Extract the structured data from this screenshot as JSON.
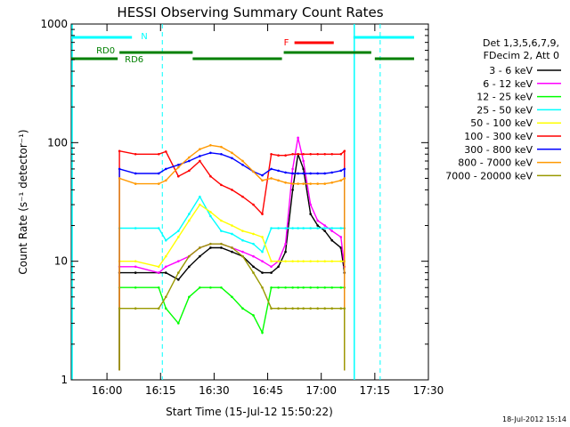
{
  "chart_data": {
    "type": "line",
    "title": "HESSI Observing Summary Count Rates",
    "xlabel": "Start Time (15-Jul-12 15:50:22)",
    "ylabel": "Count Rate (s⁻¹ detector⁻¹)",
    "yscale": "log",
    "x_unit": "minutes after 15:50:22",
    "xlim": [
      0,
      100
    ],
    "ylim": [
      1,
      1000
    ],
    "x_ticks": [
      {
        "label": "16:00",
        "x": 10
      },
      {
        "label": "16:15",
        "x": 25
      },
      {
        "label": "16:30",
        "x": 40
      },
      {
        "label": "16:45",
        "x": 55
      },
      {
        "label": "17:00",
        "x": 70
      },
      {
        "label": "17:15",
        "x": 85
      },
      {
        "label": "17:30",
        "x": 100
      }
    ],
    "y_ticks": [
      {
        "label": "1",
        "y": 1
      },
      {
        "label": "10",
        "y": 10
      },
      {
        "label": "100",
        "y": 100
      },
      {
        "label": "1000",
        "y": 1000
      }
    ],
    "legend_title": [
      "Det 1,3,5,6,7,9,",
      "FDecim 2, Att 0"
    ],
    "legend_position": "right",
    "series": [
      {
        "name": "3 - 6 keV",
        "color": "#000000",
        "x": [
          13.5,
          18,
          24.5,
          26.5,
          30,
          33,
          36,
          39,
          42,
          45,
          48,
          51,
          53.5,
          56,
          58,
          60,
          62,
          63.5,
          65,
          67,
          69,
          71,
          73,
          75.5,
          76.5
        ],
        "y": [
          8,
          8,
          8,
          8,
          7,
          9,
          11,
          13,
          13,
          12,
          11,
          9,
          8,
          8,
          9,
          12,
          40,
          80,
          60,
          25,
          20,
          18,
          15,
          13,
          8
        ]
      },
      {
        "name": "6 - 12 keV",
        "color": "#ff00ff",
        "x": [
          13.5,
          18,
          24.5,
          26.5,
          30,
          33,
          36,
          39,
          42,
          45,
          48,
          51,
          53.5,
          56,
          58,
          60,
          62,
          63.5,
          65,
          67,
          69,
          71,
          73,
          75.5,
          76.5
        ],
        "y": [
          9,
          9,
          8,
          9,
          10,
          11,
          13,
          14,
          14,
          13,
          12,
          11,
          10,
          9,
          10,
          14,
          60,
          110,
          70,
          30,
          22,
          20,
          18,
          16,
          9
        ]
      },
      {
        "name": "12 - 25 keV",
        "color": "#00ff00",
        "x": [
          13.5,
          18,
          24.5,
          26.5,
          30,
          33,
          36,
          39,
          42,
          45,
          48,
          51,
          53.5,
          56,
          58,
          60,
          62,
          63.5,
          65,
          67,
          69,
          71,
          73,
          75.5,
          76.5
        ],
        "y": [
          6,
          6,
          6,
          4,
          3,
          5,
          6,
          6,
          6,
          5,
          4,
          3.5,
          2.5,
          6,
          6,
          6,
          6,
          6,
          6,
          6,
          6,
          6,
          6,
          6,
          6
        ]
      },
      {
        "name": "25 - 50 keV",
        "color": "#00ffff",
        "x": [
          13.5,
          18,
          24.5,
          26.5,
          30,
          33,
          36,
          39,
          42,
          45,
          48,
          51,
          53.5,
          56,
          58,
          60,
          62,
          63.5,
          65,
          67,
          69,
          71,
          73,
          75.5,
          76.5
        ],
        "y": [
          19,
          19,
          19,
          15,
          18,
          25,
          35,
          24,
          18,
          17,
          15,
          14,
          12,
          19,
          19,
          19,
          19,
          19,
          19,
          19,
          19,
          19,
          19,
          19,
          19
        ]
      },
      {
        "name": "50 - 100 keV",
        "color": "#ffff00",
        "x": [
          13.5,
          18,
          24.5,
          26.5,
          30,
          33,
          36,
          39,
          42,
          45,
          48,
          51,
          53.5,
          56,
          58,
          60,
          62,
          63.5,
          65,
          67,
          69,
          71,
          73,
          75.5,
          76.5
        ],
        "y": [
          10,
          10,
          9,
          11,
          16,
          22,
          30,
          26,
          22,
          20,
          18,
          17,
          16,
          10,
          10,
          10,
          10,
          10,
          10,
          10,
          10,
          10,
          10,
          10,
          10
        ]
      },
      {
        "name": "100 - 300 keV",
        "color": "#ff0000",
        "x": [
          13.5,
          18,
          24.5,
          26.5,
          30,
          33,
          36,
          39,
          42,
          45,
          48,
          51,
          53.5,
          56,
          58,
          60,
          62,
          63.5,
          65,
          67,
          69,
          71,
          73,
          75.5,
          76.5
        ],
        "y": [
          85,
          80,
          80,
          84,
          52,
          58,
          70,
          52,
          44,
          40,
          35,
          30,
          25,
          80,
          78,
          78,
          80,
          80,
          80,
          80,
          80,
          80,
          80,
          80,
          85
        ]
      },
      {
        "name": "300 - 800 keV",
        "color": "#0000ff",
        "x": [
          13.5,
          18,
          24.5,
          26.5,
          30,
          33,
          36,
          39,
          42,
          45,
          48,
          51,
          53.5,
          56,
          58,
          60,
          62,
          63.5,
          65,
          67,
          69,
          71,
          73,
          75.5,
          76.5
        ],
        "y": [
          60,
          55,
          55,
          60,
          65,
          70,
          77,
          82,
          80,
          74,
          65,
          57,
          53,
          60,
          58,
          56,
          55,
          55,
          55,
          55,
          55,
          55,
          56,
          58,
          60
        ]
      },
      {
        "name": "800 - 7000 keV",
        "color": "#ff9900",
        "x": [
          13.5,
          18,
          24.5,
          26.5,
          30,
          33,
          36,
          39,
          42,
          45,
          48,
          51,
          53.5,
          56,
          58,
          60,
          62,
          63.5,
          65,
          67,
          69,
          71,
          73,
          75.5,
          76.5
        ],
        "y": [
          50,
          45,
          45,
          48,
          62,
          75,
          88,
          95,
          92,
          82,
          70,
          57,
          48,
          50,
          48,
          46,
          45,
          45,
          45,
          45,
          45,
          45,
          46,
          48,
          50
        ]
      },
      {
        "name": "7000 - 20000 keV",
        "color": "#999900",
        "x": [
          13.5,
          18,
          24.5,
          26.5,
          30,
          33,
          36,
          39,
          42,
          45,
          48,
          51,
          53.5,
          56,
          58,
          60,
          62,
          63.5,
          65,
          67,
          69,
          71,
          73,
          75.5,
          76.5
        ],
        "y": [
          4,
          4,
          4,
          5,
          8,
          11,
          13,
          14,
          14,
          13,
          11,
          8,
          6,
          4,
          4,
          4,
          4,
          4,
          4,
          4,
          4,
          4,
          4,
          4,
          4
        ]
      }
    ],
    "annotations": {
      "segment_labels": [
        "N",
        "RD0",
        "RD6",
        "F"
      ],
      "saa_markers_x": [
        0,
        25.5,
        79,
        86.5
      ]
    }
  },
  "footer": {
    "date_stamp": "18-Jul-2012 15:14"
  }
}
